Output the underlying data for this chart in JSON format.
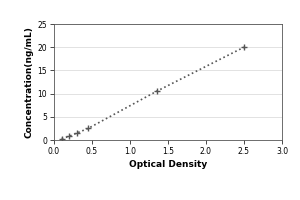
{
  "x_data": [
    0.1,
    0.2,
    0.3,
    0.45,
    1.35,
    2.5
  ],
  "y_data": [
    0.3,
    0.8,
    1.5,
    2.5,
    10.5,
    20.0
  ],
  "xlabel": "Optical Density",
  "ylabel": "Concentration(ng/mL)",
  "xlim": [
    0,
    3
  ],
  "ylim": [
    0,
    25
  ],
  "xticks": [
    0,
    0.5,
    1,
    1.5,
    2,
    2.5,
    3
  ],
  "yticks": [
    0,
    5,
    10,
    15,
    20,
    25
  ],
  "line_color": "#555555",
  "marker": "+",
  "marker_size": 5,
  "line_style": ":",
  "background_color": "#ffffff",
  "label_fontsize": 6.5,
  "tick_fontsize": 5.5,
  "line_width": 1.2
}
